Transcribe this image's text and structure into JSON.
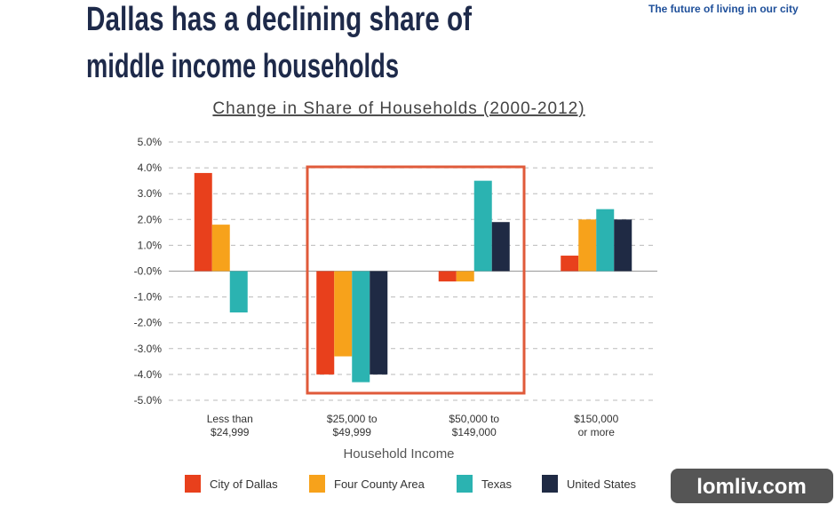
{
  "logo_tagline": "The future of living in our city",
  "watermark": "lomliv.com",
  "chart_data": {
    "type": "bar",
    "title": "Dallas has a declining share of\nmiddle income households",
    "subtitle": "Change in Share of Households (2000-2012)",
    "x_label": "Household Income",
    "categories": [
      "Less than\n$24,999",
      "$25,000 to\n$49,999",
      "$50,000 to\n$149,000",
      "$150,000\nor more"
    ],
    "series": [
      {
        "name": "City of Dallas",
        "color": "#e8401c",
        "values": [
          3.8,
          -4.0,
          -0.4,
          0.6
        ]
      },
      {
        "name": "Four County Area",
        "color": "#f7a21b",
        "values": [
          1.8,
          -3.3,
          -0.4,
          2.0
        ]
      },
      {
        "name": "Texas",
        "color": "#2bb3b1",
        "values": [
          -1.6,
          -4.3,
          3.5,
          2.4
        ]
      },
      {
        "name": "United States",
        "color": "#1f2a44",
        "values": [
          null,
          -4.0,
          1.9,
          2.0
        ]
      }
    ],
    "ylim": [
      -5,
      5
    ],
    "yticks": [
      {
        "value": 5,
        "label": "5.0%"
      },
      {
        "value": 4,
        "label": "4.0%"
      },
      {
        "value": 3,
        "label": "3.0%"
      },
      {
        "value": 2,
        "label": "2.0%"
      },
      {
        "value": 1,
        "label": "1.0%"
      },
      {
        "value": 0,
        "label": "-0.0%"
      },
      {
        "value": -1,
        "label": "-1.0%"
      },
      {
        "value": -2,
        "label": "-2.0%"
      },
      {
        "value": -3,
        "label": "-3.0%"
      },
      {
        "value": -4,
        "label": "-4.0%"
      },
      {
        "value": -5,
        "label": "-5.0%"
      }
    ],
    "grid": true,
    "legend": "bottom"
  }
}
